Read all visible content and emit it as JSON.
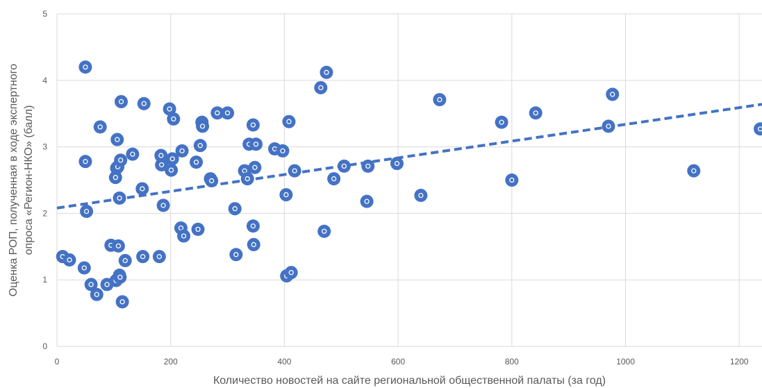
{
  "chart_data": {
    "type": "scatter",
    "title": "",
    "xlabel": "Количество новостей на сайте региональной общественной палаты (за год)",
    "ylabel_lines": [
      "Оценка РОП, полученная в ходе экспертного",
      "опроса «Регион-НКО» (балл)"
    ],
    "xlim": [
      0,
      1240
    ],
    "ylim": [
      0,
      5
    ],
    "xticks": [
      0,
      200,
      400,
      600,
      800,
      1000,
      1200
    ],
    "yticks": [
      0,
      1,
      2,
      3,
      4,
      5
    ],
    "grid": true,
    "marker_color": "#4472C4",
    "trendline": {
      "type": "linear",
      "style": "dashed",
      "color": "#4472C4",
      "x": [
        0,
        1240
      ],
      "y": [
        2.08,
        3.64
      ]
    },
    "points": [
      [
        10,
        1.35
      ],
      [
        22,
        1.3
      ],
      [
        48,
        1.18
      ],
      [
        50,
        4.2
      ],
      [
        50,
        2.78
      ],
      [
        52,
        2.03
      ],
      [
        60,
        0.93
      ],
      [
        70,
        0.78
      ],
      [
        76,
        3.3
      ],
      [
        88,
        0.93
      ],
      [
        95,
        1.52
      ],
      [
        103,
        2.54
      ],
      [
        104,
        0.99
      ],
      [
        105,
        2.68
      ],
      [
        106,
        3.11
      ],
      [
        107,
        2.7
      ],
      [
        108,
        1.51
      ],
      [
        110,
        1.07
      ],
      [
        110,
        2.23
      ],
      [
        111,
        1.04
      ],
      [
        112,
        2.8
      ],
      [
        113,
        3.68
      ],
      [
        115,
        0.67
      ],
      [
        120,
        1.29
      ],
      [
        133,
        2.89
      ],
      [
        150,
        2.37
      ],
      [
        151,
        1.35
      ],
      [
        153,
        3.65
      ],
      [
        180,
        1.35
      ],
      [
        183,
        2.87
      ],
      [
        184,
        2.73
      ],
      [
        187,
        2.12
      ],
      [
        198,
        3.57
      ],
      [
        201,
        2.65
      ],
      [
        203,
        2.82
      ],
      [
        205,
        3.42
      ],
      [
        218,
        1.78
      ],
      [
        220,
        2.94
      ],
      [
        223,
        1.66
      ],
      [
        245,
        2.77
      ],
      [
        248,
        1.76
      ],
      [
        252,
        3.02
      ],
      [
        255,
        3.37
      ],
      [
        256,
        3.31
      ],
      [
        270,
        2.52
      ],
      [
        272,
        2.49
      ],
      [
        282,
        3.51
      ],
      [
        300,
        3.51
      ],
      [
        313,
        2.07
      ],
      [
        315,
        1.38
      ],
      [
        330,
        2.64
      ],
      [
        335,
        2.52
      ],
      [
        338,
        3.04
      ],
      [
        345,
        3.33
      ],
      [
        345,
        1.81
      ],
      [
        346,
        1.53
      ],
      [
        348,
        2.69
      ],
      [
        350,
        3.04
      ],
      [
        383,
        2.97
      ],
      [
        397,
        2.94
      ],
      [
        403,
        2.28
      ],
      [
        404,
        1.06
      ],
      [
        408,
        3.38
      ],
      [
        412,
        1.11
      ],
      [
        418,
        2.64
      ],
      [
        464,
        3.89
      ],
      [
        470,
        1.73
      ],
      [
        474,
        4.12
      ],
      [
        487,
        2.52
      ],
      [
        505,
        2.71
      ],
      [
        545,
        2.18
      ],
      [
        547,
        2.71
      ],
      [
        598,
        2.75
      ],
      [
        640,
        2.27
      ],
      [
        673,
        3.71
      ],
      [
        782,
        3.37
      ],
      [
        800,
        2.5
      ],
      [
        842,
        3.51
      ],
      [
        970,
        3.31
      ],
      [
        977,
        3.79
      ],
      [
        1120,
        2.64
      ],
      [
        1237,
        3.27
      ]
    ]
  }
}
